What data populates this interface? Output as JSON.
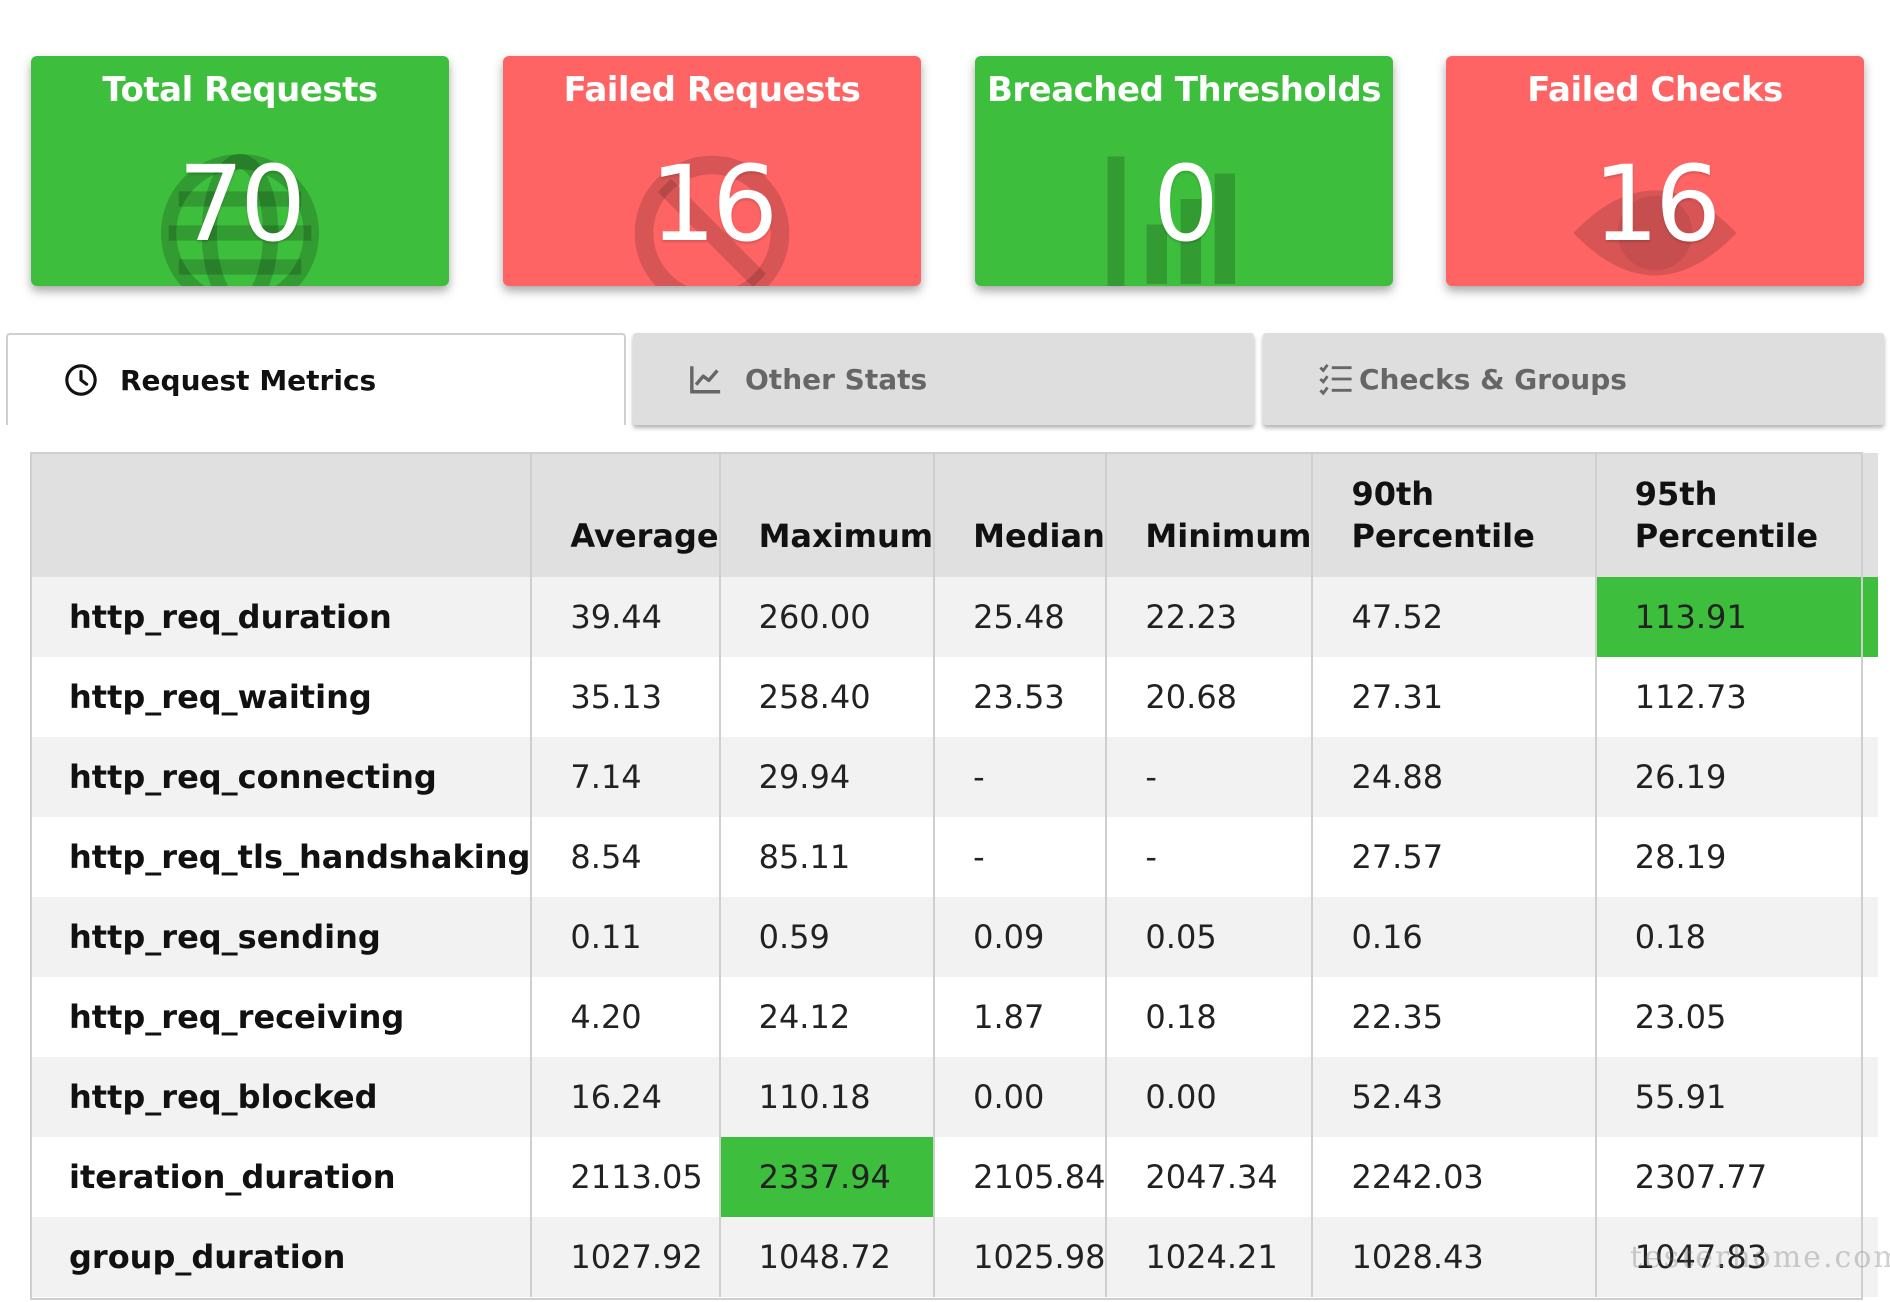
{
  "cards": [
    {
      "title": "Total Requests",
      "value": "70",
      "color": "#3dbf3d",
      "icon": "globe-icon"
    },
    {
      "title": "Failed Requests",
      "value": "16",
      "color": "#fe6464",
      "icon": "ban-icon"
    },
    {
      "title": "Breached Thresholds",
      "value": "0",
      "color": "#3dbf3d",
      "icon": "chart-icon"
    },
    {
      "title": "Failed Checks",
      "value": "16",
      "color": "#fe6464",
      "icon": "eye-icon"
    }
  ],
  "tabs": [
    {
      "label": "Request Metrics",
      "icon": "clock-icon",
      "active": true
    },
    {
      "label": "Other Stats",
      "icon": "line-chart-icon",
      "active": false
    },
    {
      "label": "Checks & Groups",
      "icon": "checklist-icon",
      "active": false
    }
  ],
  "table": {
    "headers": [
      "",
      "Average",
      "Maximum",
      "Median",
      "Minimum",
      "90th Percentile",
      "95th Percentile"
    ],
    "rows": [
      {
        "name": "http_req_duration",
        "values": [
          "39.44",
          "260.00",
          "25.48",
          "22.23",
          "47.52",
          "113.91"
        ]
      },
      {
        "name": "http_req_waiting",
        "values": [
          "35.13",
          "258.40",
          "23.53",
          "20.68",
          "27.31",
          "112.73"
        ]
      },
      {
        "name": "http_req_connecting",
        "values": [
          "7.14",
          "29.94",
          "-",
          "-",
          "24.88",
          "26.19"
        ]
      },
      {
        "name": "http_req_tls_handshaking",
        "values": [
          "8.54",
          "85.11",
          "-",
          "-",
          "27.57",
          "28.19"
        ]
      },
      {
        "name": "http_req_sending",
        "values": [
          "0.11",
          "0.59",
          "0.09",
          "0.05",
          "0.16",
          "0.18"
        ]
      },
      {
        "name": "http_req_receiving",
        "values": [
          "4.20",
          "24.12",
          "1.87",
          "0.18",
          "22.35",
          "23.05"
        ]
      },
      {
        "name": "http_req_blocked",
        "values": [
          "16.24",
          "110.18",
          "0.00",
          "0.00",
          "52.43",
          "55.91"
        ]
      },
      {
        "name": "iteration_duration",
        "values": [
          "2113.05",
          "2337.94",
          "2105.84",
          "2047.34",
          "2242.03",
          "2307.77"
        ]
      },
      {
        "name": "group_duration",
        "values": [
          "1027.92",
          "1048.72",
          "1025.98",
          "1024.21",
          "1028.43",
          "1047.83"
        ]
      }
    ],
    "highlight_color": "#3dbf3d"
  },
  "watermark": "testerhome.com"
}
